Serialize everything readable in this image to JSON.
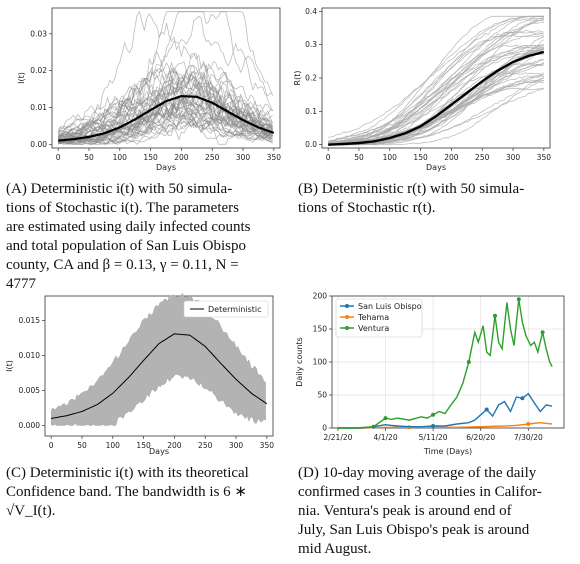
{
  "chart_data": [
    {
      "id": "A",
      "type": "line",
      "xlabel": "Days",
      "ylabel": "I(t)",
      "xlim": [
        -10,
        360
      ],
      "ylim": [
        -0.001,
        0.037
      ],
      "xticks": [
        0,
        50,
        100,
        150,
        200,
        250,
        300,
        350
      ],
      "yticks": [
        0.0,
        0.01,
        0.02,
        0.03
      ],
      "ytick_labels": [
        "0.00",
        "0.01",
        "0.02",
        "0.03"
      ],
      "grid": false,
      "series": [
        {
          "role": "deterministic",
          "color": "#000000",
          "x": [
            0,
            25,
            50,
            75,
            100,
            125,
            150,
            175,
            200,
            225,
            250,
            275,
            300,
            325,
            350
          ],
          "y": [
            0.001,
            0.0014,
            0.002,
            0.003,
            0.0046,
            0.0068,
            0.0093,
            0.0117,
            0.0131,
            0.0129,
            0.0113,
            0.0089,
            0.0066,
            0.0046,
            0.0031
          ]
        },
        {
          "role": "stochastic",
          "count": 50,
          "color": "#888888"
        }
      ]
    },
    {
      "id": "B",
      "type": "line",
      "xlabel": "Days",
      "ylabel": "R(t)",
      "xlim": [
        -10,
        360
      ],
      "ylim": [
        -0.01,
        0.41
      ],
      "xticks": [
        0,
        50,
        100,
        150,
        200,
        250,
        300,
        350
      ],
      "yticks": [
        0.0,
        0.1,
        0.2,
        0.3,
        0.4
      ],
      "ytick_labels": [
        "0.0",
        "0.1",
        "0.2",
        "0.3",
        "0.4"
      ],
      "grid": false,
      "series": [
        {
          "role": "deterministic",
          "color": "#000000",
          "x": [
            0,
            25,
            50,
            75,
            100,
            125,
            150,
            175,
            200,
            225,
            250,
            275,
            300,
            325,
            350
          ],
          "y": [
            0.0,
            0.002,
            0.005,
            0.01,
            0.02,
            0.034,
            0.055,
            0.085,
            0.12,
            0.155,
            0.19,
            0.222,
            0.248,
            0.266,
            0.278
          ]
        },
        {
          "role": "stochastic",
          "count": 50,
          "color": "#aaaaaa"
        }
      ]
    },
    {
      "id": "C",
      "type": "area",
      "xlabel": "Days",
      "ylabel": "I(t)",
      "xlim": [
        -10,
        360
      ],
      "ylim": [
        -0.0015,
        0.0185
      ],
      "xticks": [
        0,
        50,
        100,
        150,
        200,
        250,
        300,
        350
      ],
      "yticks": [
        0.0,
        0.005,
        0.01,
        0.015
      ],
      "ytick_labels": [
        "0.000",
        "0.005",
        "0.010",
        "0.015"
      ],
      "legend": {
        "position": "top-right",
        "entries": [
          "Deterministic"
        ]
      },
      "grid": false,
      "series": [
        {
          "name": "Deterministic",
          "color": "#000000",
          "x": [
            0,
            25,
            50,
            75,
            100,
            125,
            150,
            175,
            200,
            225,
            250,
            275,
            300,
            325,
            350
          ],
          "y": [
            0.001,
            0.0014,
            0.002,
            0.003,
            0.0046,
            0.0068,
            0.0093,
            0.0117,
            0.0131,
            0.0129,
            0.0113,
            0.0089,
            0.0066,
            0.0046,
            0.0031
          ]
        },
        {
          "role": "confidence_band",
          "color": "#b3b3b3",
          "x": [
            0,
            25,
            50,
            75,
            100,
            125,
            150,
            175,
            200,
            225,
            250,
            275,
            300,
            325,
            350
          ],
          "lower": [
            0.0,
            0.0,
            0.0,
            0.0,
            0.0,
            0.002,
            0.0038,
            0.0057,
            0.007,
            0.0068,
            0.0055,
            0.0035,
            0.0018,
            0.0008,
            0.0005
          ],
          "upper": [
            0.0022,
            0.003,
            0.0045,
            0.0062,
            0.009,
            0.0118,
            0.0148,
            0.0172,
            0.0188,
            0.0185,
            0.0168,
            0.0142,
            0.0113,
            0.0086,
            0.0062
          ]
        }
      ]
    },
    {
      "id": "D",
      "type": "line",
      "xlabel": "Time (Days)",
      "ylabel": "Daily counts",
      "ylim": [
        0,
        200
      ],
      "yticks": [
        0,
        50,
        100,
        150,
        200
      ],
      "ytick_labels": [
        "0",
        "50",
        "100",
        "150",
        "200"
      ],
      "xtick_labels": [
        "2/21/20",
        "4/1/20",
        "5/11/20",
        "6/20/20",
        "7/30/20"
      ],
      "legend": {
        "position": "top-left",
        "entries": [
          "San Luis Obispo",
          "Tehama",
          "Ventura"
        ]
      },
      "grid": true,
      "x_start": "2/21/20",
      "series": [
        {
          "name": "San Luis Obispo",
          "color": "#1f77b4",
          "x": [
            0,
            10,
            20,
            30,
            40,
            45,
            50,
            60,
            70,
            80,
            90,
            100,
            110,
            115,
            120,
            125,
            130,
            135,
            140,
            145,
            150,
            155,
            160,
            165,
            170,
            175,
            180
          ],
          "y": [
            0,
            0,
            0,
            2,
            5,
            4,
            3,
            2,
            2,
            3,
            3,
            6,
            8,
            12,
            20,
            28,
            18,
            35,
            40,
            25,
            47,
            45,
            52,
            38,
            25,
            35,
            33
          ]
        },
        {
          "name": "Tehama",
          "color": "#ff7f0e",
          "x": [
            0,
            20,
            40,
            60,
            80,
            100,
            120,
            140,
            150,
            160,
            170,
            180
          ],
          "y": [
            0,
            0,
            1,
            1,
            1,
            1,
            2,
            3,
            4,
            6,
            8,
            6
          ]
        },
        {
          "name": "Ventura",
          "color": "#2ca02c",
          "x": [
            0,
            15,
            30,
            40,
            45,
            50,
            60,
            70,
            75,
            80,
            85,
            90,
            95,
            100,
            105,
            110,
            115,
            118,
            122,
            125,
            128,
            132,
            135,
            138,
            142,
            145,
            148,
            152,
            155,
            158,
            162,
            165,
            168,
            172,
            175,
            178,
            180
          ],
          "y": [
            0,
            0,
            2,
            15,
            13,
            15,
            12,
            17,
            15,
            20,
            25,
            22,
            35,
            47,
            68,
            100,
            145,
            130,
            155,
            115,
            110,
            170,
            130,
            120,
            190,
            150,
            125,
            195,
            160,
            140,
            125,
            130,
            115,
            145,
            120,
            100,
            93
          ]
        }
      ]
    }
  ],
  "captions": {
    "a": {
      "tag": "(A)",
      "lines": [
        "Deterministic i(t) with 50 simula-",
        "tions of Stochastic i(t). The parameters",
        "are estimated using daily infected counts",
        "and total population of San Luis Obispo",
        "county, CA and β = 0.13, γ = 0.11, N =",
        "4777"
      ]
    },
    "b": {
      "tag": "(B)",
      "lines": [
        "Deterministic r(t) with 50 simula-",
        "tions of Stochastic r(t)."
      ]
    },
    "c": {
      "tag": "(C)",
      "lines": [
        "Deterministic i(t) with its theoretical",
        "Confidence band. The bandwidth is 6 ∗",
        "√V_I(t)."
      ]
    },
    "d": {
      "tag": "(D)",
      "lines": [
        "10-day moving average of the daily",
        "confirmed cases in 3 counties in Califor-",
        "nia. Ventura's peak is around end of",
        "July, San Luis Obispo's peak is around",
        "mid August."
      ]
    }
  }
}
